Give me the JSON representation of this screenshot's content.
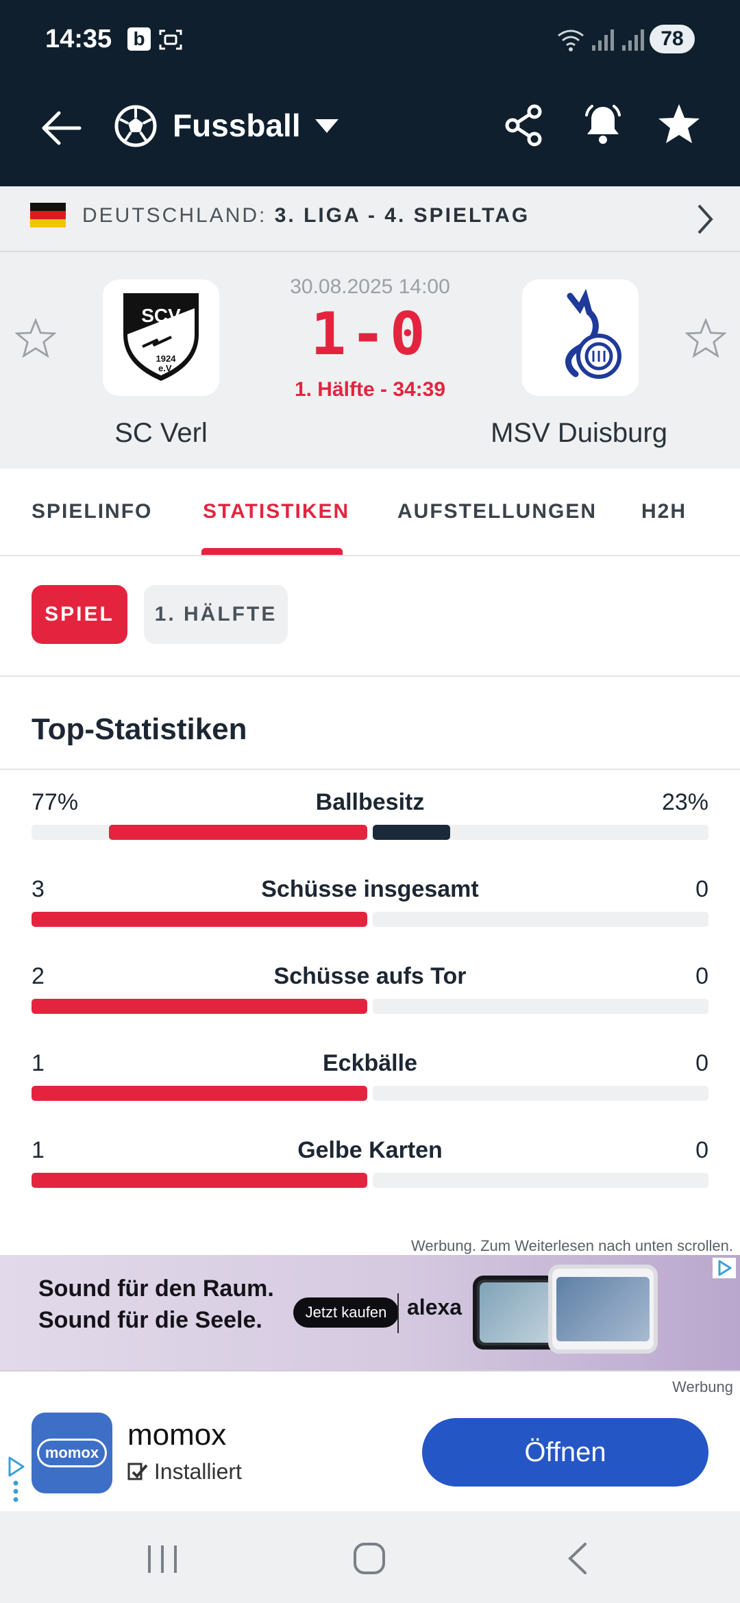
{
  "status_bar": {
    "time": "14:35",
    "badge": "b",
    "battery": "78",
    "icons": [
      "screenshot-icon",
      "wifi-icon",
      "signal-icon",
      "signal-icon"
    ]
  },
  "app_bar": {
    "title": "Fussball",
    "icons": [
      "back-arrow-icon",
      "football-icon",
      "chevron-down-icon",
      "share-icon",
      "bell-icon",
      "star-icon"
    ]
  },
  "league": {
    "country": "DEUTSCHLAND:",
    "competition": "3. LIGA - 4. SPIELTAG"
  },
  "match": {
    "home": {
      "name": "SC Verl",
      "logo_text": "SCV",
      "logo_year": "1924",
      "logo_ev": "e.V."
    },
    "away": {
      "name": "MSV Duisburg"
    },
    "datetime": "30.08.2025 14:00",
    "score": "1-0",
    "period": "1. Hälfte - 34:39"
  },
  "tabs": [
    {
      "label": "SPIELINFO",
      "active": false
    },
    {
      "label": "STATISTIKEN",
      "active": true
    },
    {
      "label": "AUFSTELLUNGEN",
      "active": false
    },
    {
      "label": "H2H",
      "active": false
    }
  ],
  "filters": [
    {
      "label": "SPIEL",
      "active": true
    },
    {
      "label": "1. HÄLFTE",
      "active": false
    }
  ],
  "stats": {
    "title": "Top-Statistiken",
    "rows": [
      {
        "label": "Ballbesitz",
        "home": "77%",
        "away": "23%",
        "home_share": 0.77,
        "away_share": 0.23
      },
      {
        "label": "Schüsse insgesamt",
        "home": "3",
        "away": "0",
        "home_share": 1.0,
        "away_share": 0.0
      },
      {
        "label": "Schüsse aufs Tor",
        "home": "2",
        "away": "0",
        "home_share": 1.0,
        "away_share": 0.0
      },
      {
        "label": "Eckbälle",
        "home": "1",
        "away": "0",
        "home_share": 1.0,
        "away_share": 0.0
      },
      {
        "label": "Gelbe Karten",
        "home": "1",
        "away": "0",
        "home_share": 1.0,
        "away_share": 0.0
      }
    ]
  },
  "ad": {
    "note": "Werbung. Zum Weiterlesen nach unten scrollen.",
    "line1": "Sound für den Raum.",
    "line2": "Sound für die Seele.",
    "button": "Jetzt kaufen",
    "brand": "alexa",
    "label": "Werbung"
  },
  "app_ad": {
    "icon_text": "momox",
    "name": "momox",
    "installed": "Installiert",
    "button": "Öffnen"
  },
  "colors": {
    "primary": "#e4243f",
    "header": "#0f1f2d",
    "away_bar": "#1a2a3a",
    "open_button": "#2556c6"
  }
}
